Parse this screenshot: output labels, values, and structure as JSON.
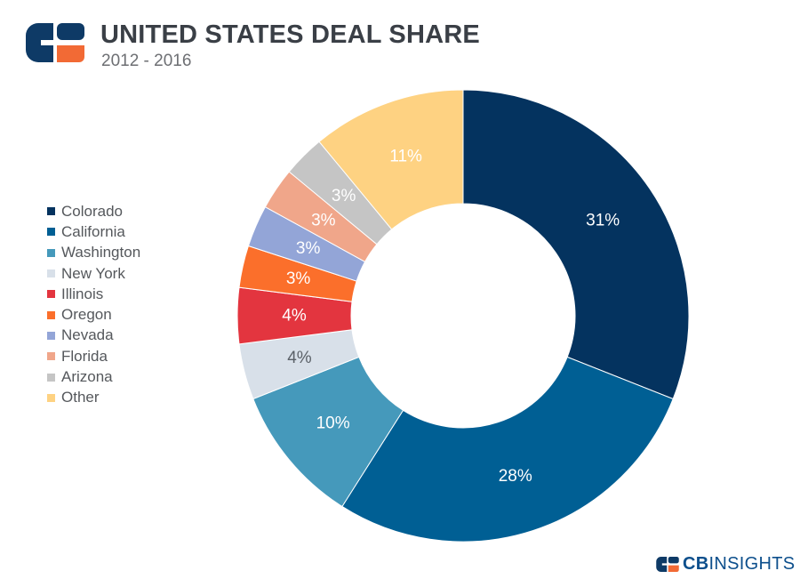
{
  "header": {
    "title": "UNITED STATES DEAL SHARE",
    "subtitle": "2012 - 2016"
  },
  "brand": {
    "cb": "CB",
    "insights": "INSIGHTS"
  },
  "colors": {
    "logo_navy": "#0e3a66",
    "logo_orange": "#f26a35",
    "title": "#3a3f46"
  },
  "chart_data": {
    "type": "pie",
    "style": "donut",
    "title": "UNITED STATES DEAL SHARE",
    "subtitle": "2012 - 2016",
    "unit": "%",
    "legend_position": "left",
    "start": "top, clockwise",
    "slices": [
      {
        "label": "Colorado",
        "value": 31,
        "display": "31%",
        "color": "#04335f",
        "text_color": "#ffffff"
      },
      {
        "label": "California",
        "value": 28,
        "display": "28%",
        "color": "#005f94",
        "text_color": "#ffffff"
      },
      {
        "label": "Washington",
        "value": 10,
        "display": "10%",
        "color": "#4599bb",
        "text_color": "#ffffff"
      },
      {
        "label": "New York",
        "value": 4,
        "display": "4%",
        "color": "#d8e0e9",
        "text_color": "#5b6168"
      },
      {
        "label": "Illinois",
        "value": 4,
        "display": "4%",
        "color": "#e3353f",
        "text_color": "#ffffff"
      },
      {
        "label": "Oregon",
        "value": 3,
        "display": "3%",
        "color": "#fb6f2b",
        "text_color": "#ffffff"
      },
      {
        "label": "Nevada",
        "value": 3,
        "display": "3%",
        "color": "#93a5d7",
        "text_color": "#ffffff"
      },
      {
        "label": "Florida",
        "value": 3,
        "display": "3%",
        "color": "#f0a68a",
        "text_color": "#ffffff"
      },
      {
        "label": "Arizona",
        "value": 3,
        "display": "3%",
        "color": "#c5c5c5",
        "text_color": "#ffffff"
      },
      {
        "label": "Other",
        "value": 11,
        "display": "11%",
        "color": "#fed282",
        "text_color": "#ffffff"
      }
    ]
  }
}
